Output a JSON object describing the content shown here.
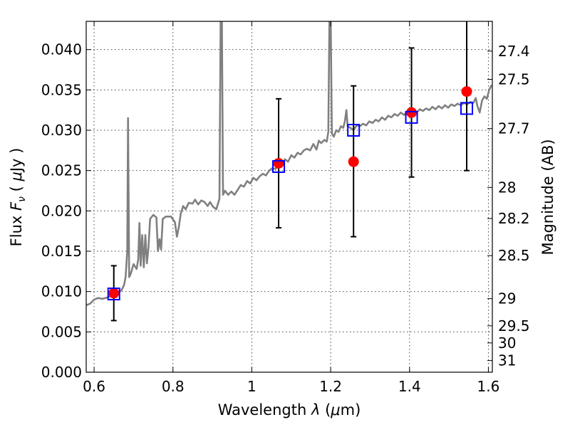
{
  "chart_data": {
    "type": "scatter",
    "xlabel": {
      "pre": "Wavelength  ",
      "sym": "λ",
      "open": " (",
      "mu": "μ",
      "unit": "m)"
    },
    "ylabel": {
      "pre": "Flux  ",
      "sym": "F",
      "sub": "ν",
      "open": "  ( ",
      "mu": "μ",
      "unit": "Jy )"
    },
    "ylabel_right": "Magnitude (AB)",
    "xlim": [
      0.58,
      1.61
    ],
    "ylim": [
      0.0,
      0.0435
    ],
    "grid": true,
    "x_ticks": [
      {
        "value": 0.6,
        "label": "0.6"
      },
      {
        "value": 0.8,
        "label": "0.8"
      },
      {
        "value": 1.0,
        "label": "1"
      },
      {
        "value": 1.2,
        "label": "1.2"
      },
      {
        "value": 1.4,
        "label": "1.4"
      },
      {
        "value": 1.6,
        "label": "1.6"
      }
    ],
    "y_ticks": [
      {
        "value": 0.0,
        "label": "0.000"
      },
      {
        "value": 0.005,
        "label": "0.005"
      },
      {
        "value": 0.01,
        "label": "0.010"
      },
      {
        "value": 0.015,
        "label": "0.015"
      },
      {
        "value": 0.02,
        "label": "0.020"
      },
      {
        "value": 0.025,
        "label": "0.025"
      },
      {
        "value": 0.03,
        "label": "0.030"
      },
      {
        "value": 0.035,
        "label": "0.035"
      },
      {
        "value": 0.04,
        "label": "0.040"
      }
    ],
    "mag_ticks": [
      {
        "value": 27.4,
        "label": "27.4"
      },
      {
        "value": 27.5,
        "label": "27.5"
      },
      {
        "value": 27.7,
        "label": "27.7"
      },
      {
        "value": 28.0,
        "label": "28"
      },
      {
        "value": 28.2,
        "label": "28.2"
      },
      {
        "value": 28.5,
        "label": "28.5"
      },
      {
        "value": 29.0,
        "label": "29"
      },
      {
        "value": 29.5,
        "label": "29.5"
      },
      {
        "value": 30.0,
        "label": "30"
      },
      {
        "value": 31.0,
        "label": "31"
      }
    ],
    "series": [
      {
        "kind": "line",
        "color": "#808080",
        "points": [
          [
            0.58,
            0.0083
          ],
          [
            0.59,
            0.0085
          ],
          [
            0.6,
            0.009
          ],
          [
            0.61,
            0.0092
          ],
          [
            0.62,
            0.0091
          ],
          [
            0.63,
            0.0092
          ],
          [
            0.64,
            0.0094
          ],
          [
            0.65,
            0.0095
          ],
          [
            0.66,
            0.0098
          ],
          [
            0.67,
            0.0102
          ],
          [
            0.676,
            0.0108
          ],
          [
            0.68,
            0.0118
          ],
          [
            0.684,
            0.015
          ],
          [
            0.686,
            0.0315
          ],
          [
            0.689,
            0.0118
          ],
          [
            0.693,
            0.0122
          ],
          [
            0.7,
            0.0134
          ],
          [
            0.708,
            0.0128
          ],
          [
            0.712,
            0.014
          ],
          [
            0.715,
            0.0185
          ],
          [
            0.718,
            0.0132
          ],
          [
            0.722,
            0.017
          ],
          [
            0.726,
            0.013
          ],
          [
            0.73,
            0.017
          ],
          [
            0.734,
            0.0135
          ],
          [
            0.738,
            0.0155
          ],
          [
            0.742,
            0.019
          ],
          [
            0.75,
            0.0195
          ],
          [
            0.758,
            0.0192
          ],
          [
            0.762,
            0.015
          ],
          [
            0.766,
            0.0165
          ],
          [
            0.77,
            0.0152
          ],
          [
            0.774,
            0.019
          ],
          [
            0.782,
            0.0193
          ],
          [
            0.795,
            0.0193
          ],
          [
            0.805,
            0.0186
          ],
          [
            0.81,
            0.0168
          ],
          [
            0.815,
            0.018
          ],
          [
            0.82,
            0.0197
          ],
          [
            0.826,
            0.0206
          ],
          [
            0.832,
            0.0202
          ],
          [
            0.84,
            0.021
          ],
          [
            0.85,
            0.0209
          ],
          [
            0.856,
            0.0214
          ],
          [
            0.864,
            0.0208
          ],
          [
            0.872,
            0.0213
          ],
          [
            0.88,
            0.0211
          ],
          [
            0.888,
            0.0206
          ],
          [
            0.894,
            0.0211
          ],
          [
            0.902,
            0.0205
          ],
          [
            0.91,
            0.0202
          ],
          [
            0.918,
            0.0215
          ],
          [
            0.921,
            0.044
          ],
          [
            0.924,
            0.044
          ],
          [
            0.927,
            0.022
          ],
          [
            0.932,
            0.0225
          ],
          [
            0.94,
            0.022
          ],
          [
            0.948,
            0.0224
          ],
          [
            0.956,
            0.022
          ],
          [
            0.964,
            0.0226
          ],
          [
            0.972,
            0.0232
          ],
          [
            0.98,
            0.023
          ],
          [
            0.988,
            0.0237
          ],
          [
            0.996,
            0.0234
          ],
          [
            1.004,
            0.0241
          ],
          [
            1.012,
            0.0238
          ],
          [
            1.02,
            0.0243
          ],
          [
            1.028,
            0.0246
          ],
          [
            1.036,
            0.0244
          ],
          [
            1.044,
            0.025
          ],
          [
            1.052,
            0.0253
          ],
          [
            1.06,
            0.0252
          ],
          [
            1.068,
            0.0257
          ],
          [
            1.076,
            0.0258
          ],
          [
            1.084,
            0.0264
          ],
          [
            1.092,
            0.0261
          ],
          [
            1.1,
            0.0269
          ],
          [
            1.108,
            0.0266
          ],
          [
            1.116,
            0.0272
          ],
          [
            1.124,
            0.027
          ],
          [
            1.132,
            0.0275
          ],
          [
            1.14,
            0.0277
          ],
          [
            1.148,
            0.0275
          ],
          [
            1.156,
            0.0283
          ],
          [
            1.164,
            0.0276
          ],
          [
            1.17,
            0.0287
          ],
          [
            1.176,
            0.0284
          ],
          [
            1.184,
            0.0288
          ],
          [
            1.19,
            0.0286
          ],
          [
            1.194,
            0.0298
          ],
          [
            1.197,
            0.044
          ],
          [
            1.2,
            0.044
          ],
          [
            1.203,
            0.0296
          ],
          [
            1.208,
            0.0292
          ],
          [
            1.214,
            0.03
          ],
          [
            1.22,
            0.0298
          ],
          [
            1.226,
            0.0305
          ],
          [
            1.232,
            0.0303
          ],
          [
            1.236,
            0.0311
          ],
          [
            1.24,
            0.0325
          ],
          [
            1.243,
            0.0305
          ],
          [
            1.25,
            0.0303
          ],
          [
            1.258,
            0.03
          ],
          [
            1.266,
            0.0306
          ],
          [
            1.274,
            0.0305
          ],
          [
            1.282,
            0.0308
          ],
          [
            1.29,
            0.0306
          ],
          [
            1.298,
            0.0311
          ],
          [
            1.306,
            0.0309
          ],
          [
            1.314,
            0.0313
          ],
          [
            1.322,
            0.0311
          ],
          [
            1.33,
            0.0316
          ],
          [
            1.338,
            0.0313
          ],
          [
            1.346,
            0.0318
          ],
          [
            1.354,
            0.0316
          ],
          [
            1.362,
            0.032
          ],
          [
            1.37,
            0.0318
          ],
          [
            1.378,
            0.0322
          ],
          [
            1.386,
            0.0319
          ],
          [
            1.394,
            0.0323
          ],
          [
            1.402,
            0.0321
          ],
          [
            1.41,
            0.0324
          ],
          [
            1.418,
            0.0322
          ],
          [
            1.426,
            0.0326
          ],
          [
            1.434,
            0.0324
          ],
          [
            1.442,
            0.0327
          ],
          [
            1.45,
            0.0325
          ],
          [
            1.458,
            0.0329
          ],
          [
            1.466,
            0.0326
          ],
          [
            1.474,
            0.033
          ],
          [
            1.482,
            0.0327
          ],
          [
            1.49,
            0.0331
          ],
          [
            1.498,
            0.0328
          ],
          [
            1.506,
            0.0332
          ],
          [
            1.514,
            0.033
          ],
          [
            1.522,
            0.0333
          ],
          [
            1.53,
            0.0331
          ],
          [
            1.538,
            0.0334
          ],
          [
            1.546,
            0.0332
          ],
          [
            1.554,
            0.0335
          ],
          [
            1.562,
            0.0334
          ],
          [
            1.568,
            0.034
          ],
          [
            1.572,
            0.033
          ],
          [
            1.578,
            0.0322
          ],
          [
            1.584,
            0.0337
          ],
          [
            1.59,
            0.0342
          ],
          [
            1.596,
            0.0339
          ],
          [
            1.602,
            0.035
          ],
          [
            1.608,
            0.0356
          ]
        ]
      },
      {
        "kind": "model-photometry",
        "marker": "square",
        "color": "#0000ff",
        "points": [
          [
            0.65,
            0.0097
          ],
          [
            1.068,
            0.0255
          ],
          [
            1.258,
            0.03
          ],
          [
            1.405,
            0.0316
          ],
          [
            1.545,
            0.0327
          ]
        ]
      },
      {
        "kind": "observed-photometry",
        "marker": "circle",
        "color": "#ff0000",
        "points": [
          {
            "x": 0.65,
            "y": 0.0098,
            "ylow": 0.0064,
            "yhigh": 0.0132
          },
          {
            "x": 1.068,
            "y": 0.0259,
            "ylow": 0.0179,
            "yhigh": 0.0339
          },
          {
            "x": 1.258,
            "y": 0.0261,
            "ylow": 0.0168,
            "yhigh": 0.0355
          },
          {
            "x": 1.405,
            "y": 0.0322,
            "ylow": 0.0242,
            "yhigh": 0.0402
          },
          {
            "x": 1.545,
            "y": 0.0348,
            "ylow": 0.025,
            "yhigh": 0.044
          }
        ]
      }
    ]
  }
}
